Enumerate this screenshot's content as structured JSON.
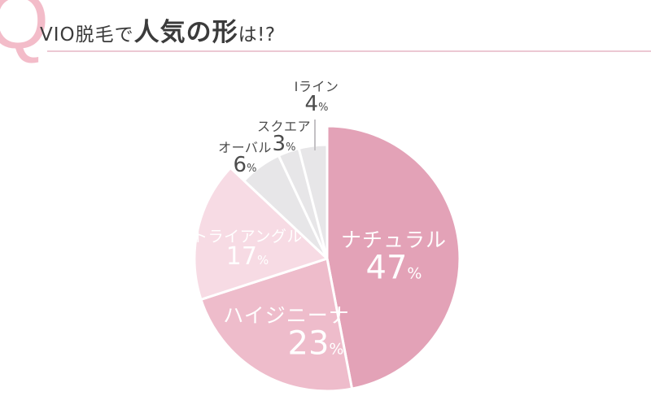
{
  "header": {
    "q_mark": "Q",
    "title_prefix": "VIO脱毛で",
    "title_emphasis": "人気の形",
    "title_suffix": "は!?",
    "title_color": "#3b3b3b",
    "q_color": "#f3bcc9",
    "underline_color": "#ecc8d3"
  },
  "chart_data": {
    "type": "pie",
    "title": "VIO脱毛で人気の形は!?",
    "unit": "%",
    "start_angle_deg": 0,
    "direction": "clockwise",
    "divider_color": "#ffffff",
    "slices": [
      {
        "key": "natural",
        "label": "ナチュラル",
        "value": 47,
        "color": "#e3a2b7",
        "label_position": "inside",
        "outer_radius": 163
      },
      {
        "key": "hygienina",
        "label": "ハイジニーナ",
        "value": 23,
        "color": "#eebccb",
        "label_position": "inside",
        "outer_radius": 163
      },
      {
        "key": "triangle",
        "label": "トライアングル",
        "value": 17,
        "color": "#f7dbe4",
        "label_position": "inside",
        "outer_radius": 163
      },
      {
        "key": "oval",
        "label": "オーバル",
        "value": 6,
        "color": "#e7e6e8",
        "label_position": "outside",
        "outer_radius": 140
      },
      {
        "key": "square",
        "label": "スクエア",
        "value": 3,
        "color": "#e7e6e8",
        "label_position": "outside",
        "outer_radius": 140
      },
      {
        "key": "iline",
        "label": "Iライン",
        "value": 4,
        "color": "#e7e6e8",
        "label_position": "outside",
        "outer_radius": 140
      }
    ]
  }
}
